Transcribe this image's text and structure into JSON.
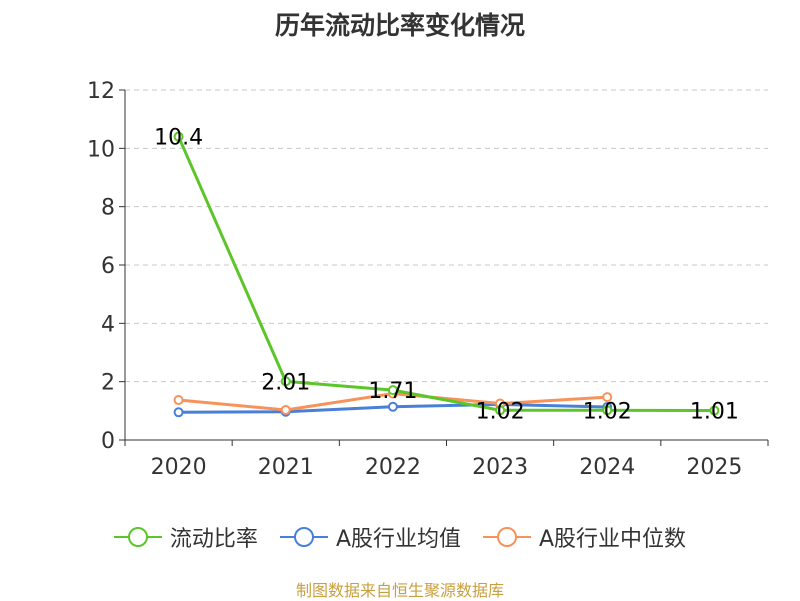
{
  "title": "历年流动比率变化情况",
  "source": "制图数据来自恒生聚源数据库",
  "chart_data": {
    "type": "line",
    "title": "历年流动比率变化情况",
    "categories": [
      "2020",
      "2021",
      "2022",
      "2023",
      "2024",
      "2025"
    ],
    "ylim": [
      0,
      12
    ],
    "yticks": [
      0,
      2,
      4,
      6,
      8,
      10,
      12
    ],
    "grid": true,
    "legend_position": "bottom",
    "series": [
      {
        "name": "流动比率",
        "color": "#5cc52a",
        "values": [
          10.4,
          2.01,
          1.71,
          1.02,
          1.02,
          1.01
        ],
        "labels": [
          "10.4",
          "2.01",
          "1.71",
          "1.02",
          "1.02",
          "1.01"
        ]
      },
      {
        "name": "A股行业均值",
        "color": "#4a7fd8",
        "values": [
          0.95,
          0.97,
          1.14,
          1.22,
          1.13,
          null
        ]
      },
      {
        "name": "A股行业中位数",
        "color": "#f7935a",
        "values": [
          1.37,
          1.03,
          1.59,
          1.25,
          1.47,
          null
        ]
      }
    ]
  }
}
